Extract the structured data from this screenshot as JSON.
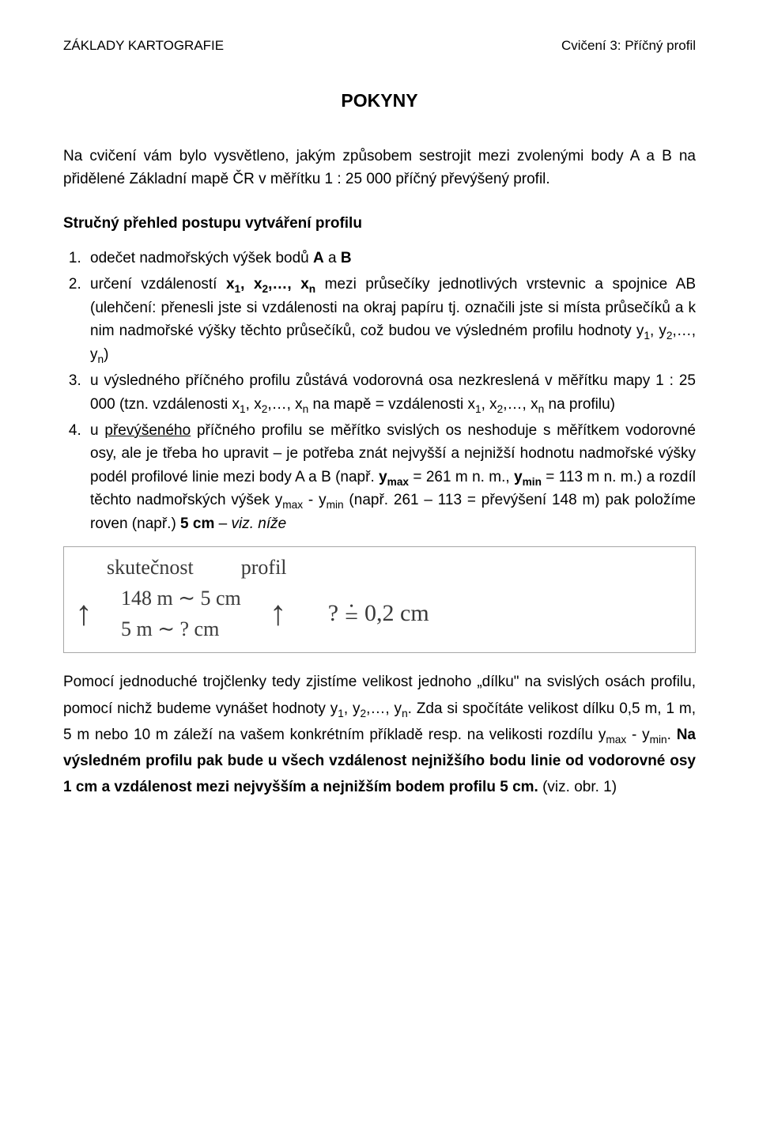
{
  "header": {
    "left": "ZÁKLADY KARTOGRAFIE",
    "right": "Cvičení 3: Příčný profil"
  },
  "title": "POKYNY",
  "intro": "Na cvičení vám bylo vysvětleno, jakým způsobem sestrojit mezi zvolenými body A a B na přidělené Základní mapě ČR v měřítku 1 : 25 000 příčný převýšený profil.",
  "subhead": "Stručný přehled postupu vytváření profilu",
  "step1_a": "odečet nadmořských výšek bodů ",
  "step1_b": "A",
  "step1_c": " a ",
  "step1_d": "B",
  "step2_a": "určení vzdáleností ",
  "step2_b": "x",
  "step2_c": ", ",
  "step2_d": "x",
  "step2_e": ",…, x",
  "step2_f": " mezi průsečíky jednotlivých vrstevnic a spojnice AB (ulehčení: přenesli jste si vzdálenosti na okraj papíru tj. označili jste si místa průsečíků a k nim nadmořské výšky těchto průsečíků, což budou ve výsledném profilu hodnoty y",
  "step2_g": ", y",
  "step2_h": ",…, y",
  "step2_i": ")",
  "step3": "u výsledného příčného profilu zůstává vodorovná osa nezkreslená v měřítku mapy 1 : 25 000 (tzn. vzdálenosti x",
  "step3_b": ", x",
  "step3_c": ",…, x",
  "step3_d": " na mapě = vzdálenosti x",
  "step3_e": ", x",
  "step3_f": ",…, x",
  "step3_g": " na profilu)",
  "step4_a": "u ",
  "step4_under": "převýšeného",
  "step4_b": " příčného profilu se měřítko svislých os neshoduje s měřítkem vodorovné osy, ale je třeba ho upravit – je potřeba znát nejvyšší a nejnižší hodnotu nadmořské výšky podél profilové linie mezi body A a B (např. ",
  "step4_ymax": "y",
  "step4_maxsub": "max",
  "step4_c": " = 261 m n. m., ",
  "step4_ymin": "y",
  "step4_minsub": "min",
  "step4_d": " = 113 m n. m.) a rozdíl těchto nadmořských výšek y",
  "step4_e": " - y",
  "step4_f": " (např. 261 – 113 = převýšení 148 m) pak položíme roven (např.) ",
  "step4_5cm": "5 cm",
  "step4_g": " – ",
  "step4_viz": "viz. níže",
  "hw": {
    "label1": "skutečnost",
    "label2": "profil",
    "l1": "148 m ∼ 5 cm",
    "l2": "5 m ∼ ? cm",
    "q": "?",
    "result": "0,2 cm"
  },
  "after_a": "Pomocí jednoduché trojčlenky tedy zjistíme velikost jednoho „dílku\" na svislých osách profilu, pomocí nichž budeme vynášet hodnoty y",
  "after_b": ", y",
  "after_c": ",…, y",
  "after_d": ". Zda si spočítáte velikost dílku 0,5 m, 1 m, 5 m nebo 10 m záleží na vašem konkrétním příkladě resp. na velikosti rozdílu y",
  "after_e": " - y",
  "after_f": ". ",
  "after_bold": "Na výsledném profilu pak bude u všech vzdálenost nejnižšího bodu linie od vodorovné osy 1 cm a vzdálenost mezi nejvyšším a nejnižším bodem profilu 5 cm.",
  "after_g": " (viz. obr. 1)",
  "sub": {
    "1": "1",
    "2": "2",
    "n": "n",
    "max": "max",
    "min": "min"
  }
}
